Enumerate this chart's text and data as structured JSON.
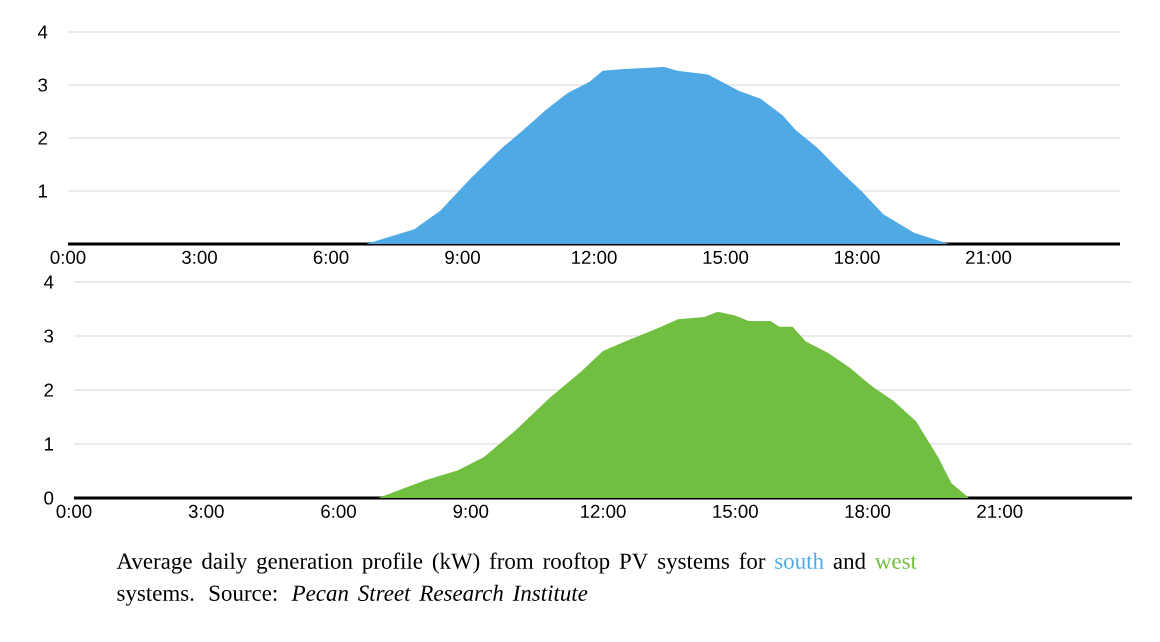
{
  "chart_data": [
    {
      "type": "area",
      "xlim": [
        0,
        24
      ],
      "xticks": [
        {
          "value": 0,
          "label": "0:00"
        },
        {
          "value": 3,
          "label": "3:00"
        },
        {
          "value": 6,
          "label": "6:00"
        },
        {
          "value": 9,
          "label": "9:00"
        },
        {
          "value": 12,
          "label": "12:00"
        },
        {
          "value": 15,
          "label": "15:00"
        },
        {
          "value": 18,
          "label": "18:00"
        },
        {
          "value": 21,
          "label": "21:00"
        }
      ],
      "ylim": [
        0,
        4
      ],
      "yticks": [
        1,
        2,
        3,
        4
      ],
      "grid": "y",
      "series": [
        {
          "name": "south",
          "color": "#4ea9e5",
          "x": [
            0,
            6.8,
            7.9,
            8.5,
            9.2,
            9.9,
            10.4,
            10.9,
            11.4,
            11.9,
            12.2,
            12.7,
            13.6,
            13.9,
            14.6,
            15.3,
            15.8,
            16.3,
            16.6,
            17.1,
            17.6,
            18.1,
            18.6,
            19.3,
            20.1,
            24
          ],
          "values": [
            0,
            0,
            0.28,
            0.63,
            1.25,
            1.81,
            2.16,
            2.53,
            2.85,
            3.06,
            3.27,
            3.3,
            3.34,
            3.27,
            3.2,
            2.89,
            2.74,
            2.43,
            2.15,
            1.81,
            1.39,
            1.0,
            0.56,
            0.21,
            0,
            0
          ]
        }
      ]
    },
    {
      "type": "area",
      "xlim": [
        0,
        24
      ],
      "xticks": [
        {
          "value": 0,
          "label": "0:00"
        },
        {
          "value": 3,
          "label": "3:00"
        },
        {
          "value": 6,
          "label": "6:00"
        },
        {
          "value": 9,
          "label": "9:00"
        },
        {
          "value": 12,
          "label": "12:00"
        },
        {
          "value": 15,
          "label": "15:00"
        },
        {
          "value": 18,
          "label": "18:00"
        },
        {
          "value": 21,
          "label": "21:00"
        }
      ],
      "ylim": [
        0,
        4
      ],
      "yticks": [
        0,
        1,
        2,
        3,
        4
      ],
      "grid": "y",
      "series": [
        {
          "name": "west",
          "color": "#70bf41",
          "x": [
            0,
            6.9,
            8.0,
            8.7,
            9.3,
            10.0,
            10.8,
            11.5,
            12.0,
            12.5,
            13.2,
            13.7,
            14.3,
            14.6,
            15.0,
            15.3,
            15.8,
            16.0,
            16.3,
            16.6,
            17.1,
            17.6,
            18.1,
            18.6,
            19.1,
            19.6,
            19.9,
            20.3,
            24
          ],
          "values": [
            0,
            0,
            0.34,
            0.51,
            0.76,
            1.24,
            1.86,
            2.34,
            2.72,
            2.9,
            3.13,
            3.31,
            3.35,
            3.45,
            3.38,
            3.28,
            3.28,
            3.17,
            3.17,
            2.9,
            2.69,
            2.41,
            2.07,
            1.79,
            1.42,
            0.76,
            0.28,
            0,
            0
          ]
        }
      ],
      "annotations": [
        "Average daily generation profile (kW) from rooftop PV systems for",
        "and",
        "systems. Source: *Pecan Street Research Institute*"
      ]
    }
  ]
}
